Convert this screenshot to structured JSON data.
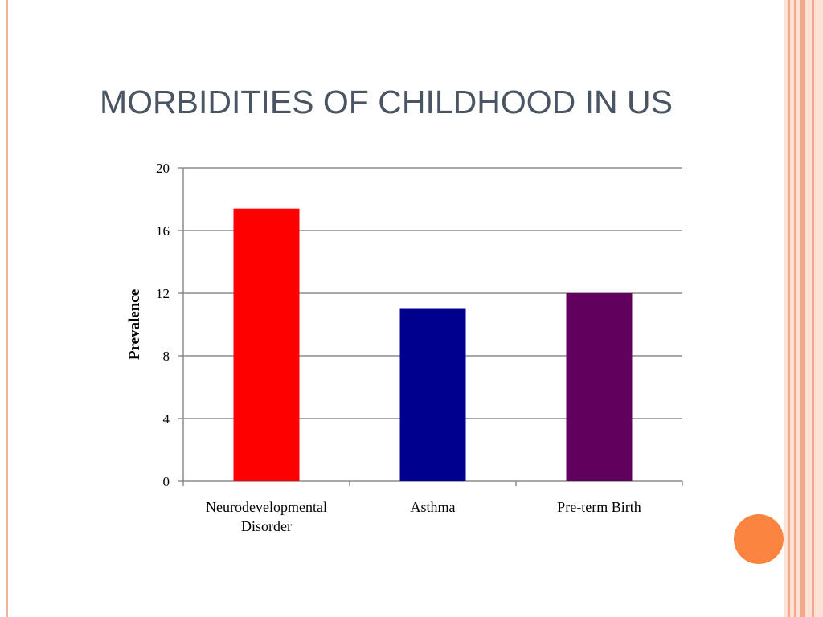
{
  "slide": {
    "title": "MORBIDITIES OF CHILDHOOD IN US"
  },
  "colors": {
    "title": "#4a5564",
    "accent_orange": "#fb8540",
    "frame": "#f4a98a"
  },
  "chart_data": {
    "type": "bar",
    "title": "",
    "xlabel": "",
    "ylabel": "Prevalence",
    "ylim": [
      0,
      20
    ],
    "yticks": [
      0,
      4,
      8,
      12,
      16,
      20
    ],
    "grid": true,
    "categories": [
      [
        "Neurodevelopmental",
        "Disorder"
      ],
      [
        "Asthma"
      ],
      [
        "Pre-term Birth"
      ]
    ],
    "values": [
      17.4,
      11.0,
      12.0
    ],
    "bar_colors": [
      "#ff0000",
      "#00008f",
      "#62005e"
    ]
  }
}
